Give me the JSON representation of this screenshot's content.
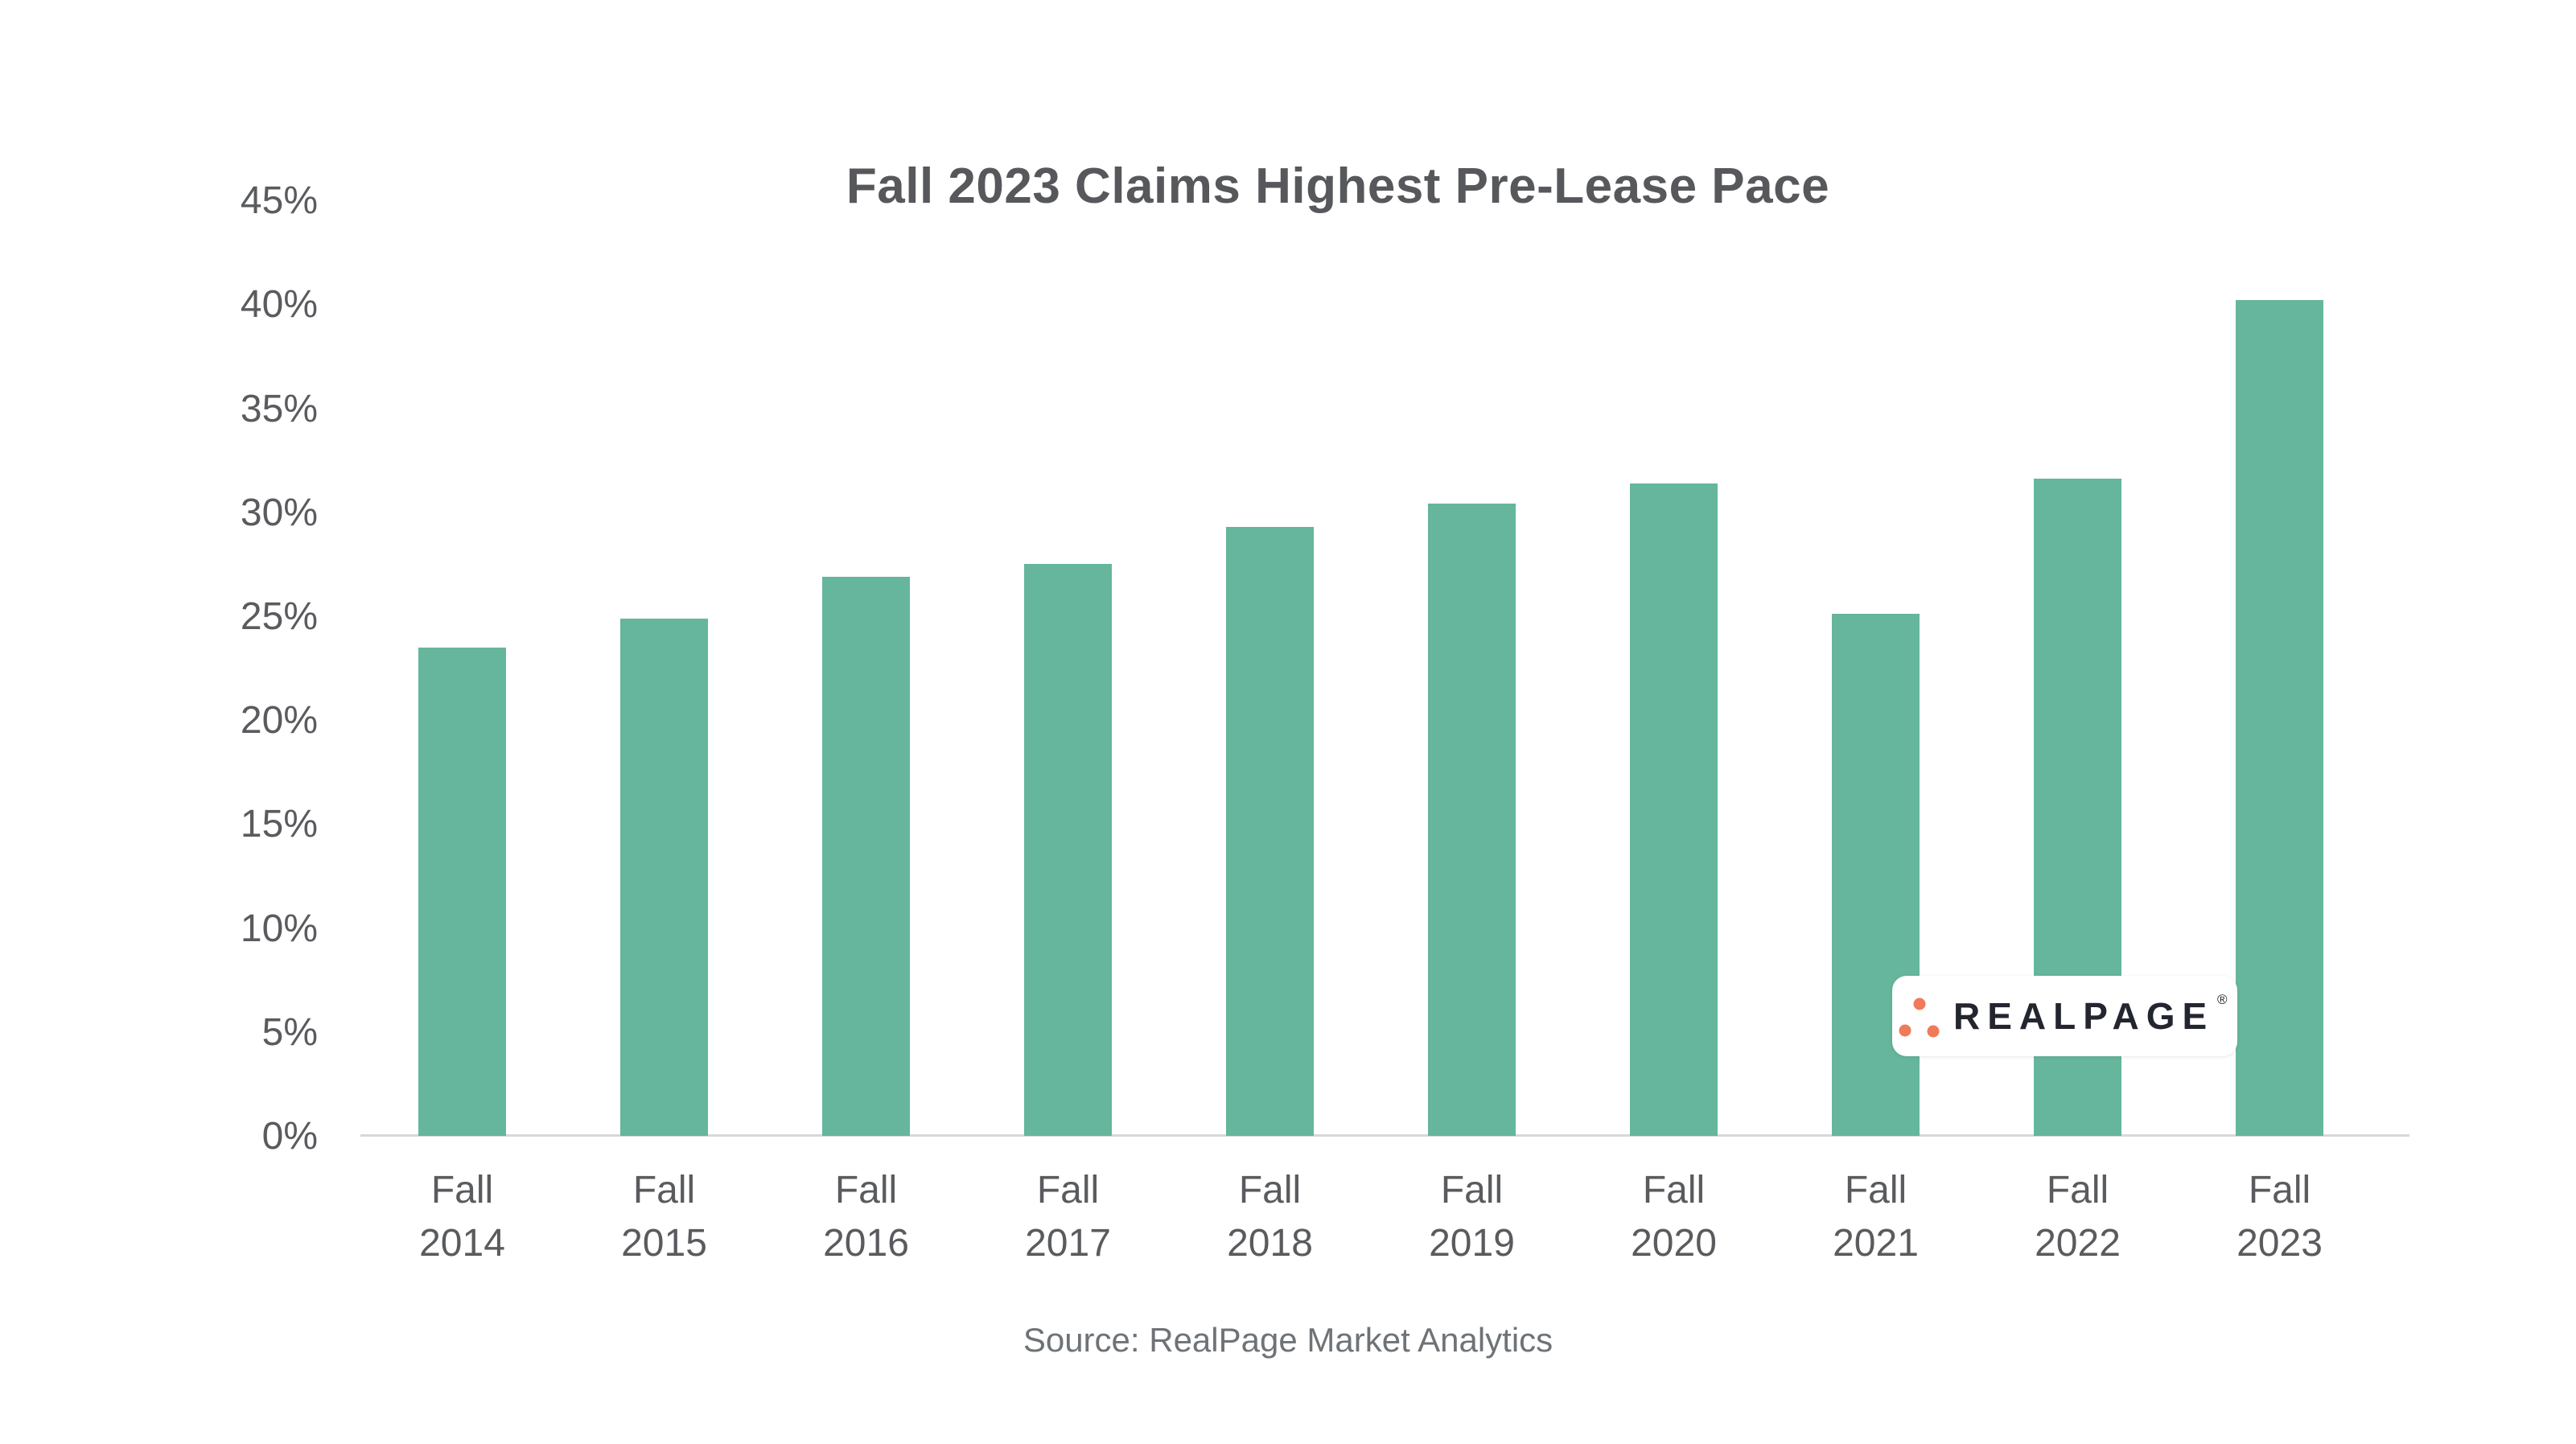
{
  "title": "Fall 2023 Claims Highest Pre-Lease Pace",
  "source_note": "Source: RealPage Market Analytics",
  "logo": {
    "brand": "REALPAGE",
    "registered_mark": "®"
  },
  "colors": {
    "background": "#FFFFFF",
    "bar": "#65B69C",
    "axis_line": "#D8D8D8",
    "title_text": "#57585B",
    "tick_text": "#595B5E",
    "source_text": "#6E7377",
    "logo_text": "#23262E",
    "logo_dots": "#EF7B58"
  },
  "chart_data": {
    "type": "bar",
    "title": "Fall 2023 Claims Highest Pre-Lease Pace",
    "categories": [
      "Fall 2014",
      "Fall 2015",
      "Fall 2016",
      "Fall 2017",
      "Fall 2018",
      "Fall 2019",
      "Fall 2020",
      "Fall 2021",
      "Fall 2022",
      "Fall 2023"
    ],
    "values": [
      23.5,
      24.9,
      26.9,
      27.5,
      29.3,
      30.4,
      31.4,
      25.1,
      31.6,
      40.2
    ],
    "unit": "%",
    "xlabel": "",
    "ylabel": "",
    "ylim": [
      0,
      45
    ],
    "ytick_step": 5,
    "ytick_labels": [
      "0%",
      "5%",
      "10%",
      "15%",
      "20%",
      "25%",
      "30%",
      "35%",
      "40%",
      "45%"
    ],
    "grid": false,
    "legend": false,
    "bar_color": "#65B69C"
  }
}
